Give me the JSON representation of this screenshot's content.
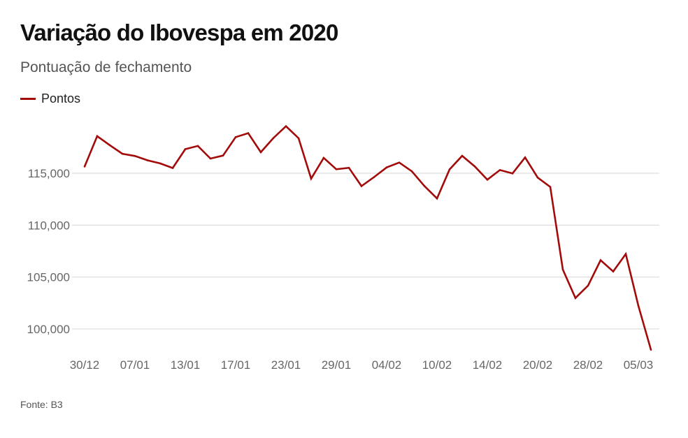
{
  "chart_data": {
    "type": "line",
    "title": "Variação do Ibovespa em 2020",
    "subtitle": "Pontuação de fechamento",
    "source": "Fonte: B3",
    "legend": {
      "position": "top-left"
    },
    "grid": {
      "horizontal": true,
      "vertical": false
    },
    "ylim": [
      97600,
      121000
    ],
    "yticks": [
      100000,
      105000,
      110000,
      115000
    ],
    "ytick_labels": [
      "100,000",
      "105,000",
      "110,000",
      "115,000"
    ],
    "x": [
      "30/12",
      "02/01",
      "03/01",
      "06/01",
      "07/01",
      "08/01",
      "09/01",
      "10/01",
      "13/01",
      "14/01",
      "15/01",
      "16/01",
      "17/01",
      "20/01",
      "21/01",
      "22/01",
      "23/01",
      "24/01",
      "27/01",
      "28/01",
      "29/01",
      "30/01",
      "31/01",
      "03/02",
      "04/02",
      "05/02",
      "06/02",
      "07/02",
      "10/02",
      "11/02",
      "12/02",
      "13/02",
      "14/02",
      "17/02",
      "18/02",
      "19/02",
      "20/02",
      "21/02",
      "26/02",
      "27/02",
      "28/02",
      "02/03",
      "03/03",
      "04/03",
      "05/03",
      "06/03"
    ],
    "xtick_labels": [
      "30/12",
      "07/01",
      "13/01",
      "17/01",
      "23/01",
      "29/01",
      "04/02",
      "10/02",
      "14/02",
      "20/02",
      "28/02",
      "05/03"
    ],
    "series": [
      {
        "name": "Pontos",
        "color": "#a30a0a",
        "values": [
          115645,
          118573,
          117707,
          116878,
          116662,
          116247,
          115947,
          115503,
          117325,
          117632,
          116414,
          116704,
          118478,
          118862,
          117026,
          118391,
          119528,
          118376,
          114482,
          116479,
          115385,
          115528,
          113761,
          114629,
          115557,
          116028,
          115190,
          113770,
          112571,
          115371,
          116674,
          115662,
          114381,
          115309,
          114977,
          116518,
          114586,
          113681,
          105718,
          102984,
          104172,
          106625,
          105537,
          107224,
          102233,
          97997
        ]
      }
    ]
  }
}
